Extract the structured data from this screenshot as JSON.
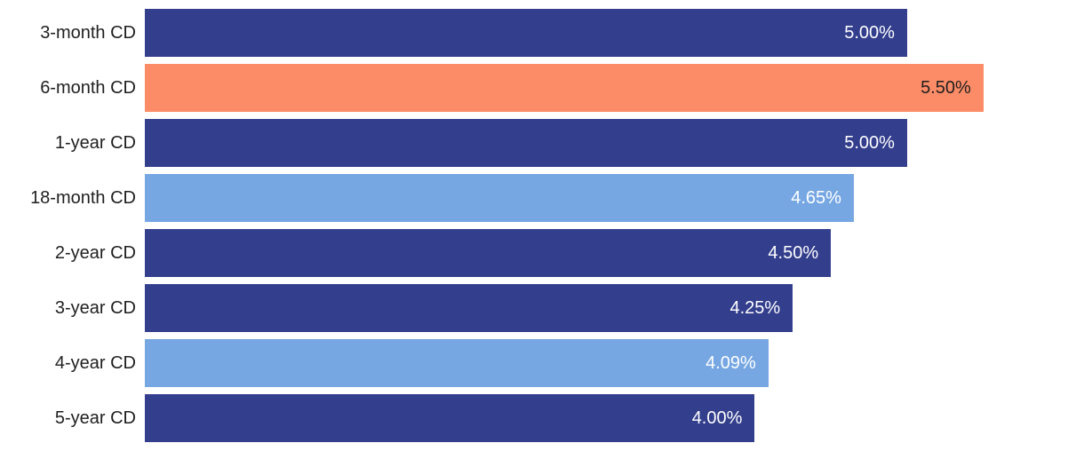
{
  "chart_data": {
    "type": "bar",
    "orientation": "horizontal",
    "title": "",
    "xlabel": "",
    "ylabel": "",
    "categories": [
      "3-month CD",
      "6-month CD",
      "1-year CD",
      "18-month CD",
      "2-year CD",
      "3-year CD",
      "4-year CD",
      "5-year CD"
    ],
    "values": [
      5.0,
      5.5,
      5.0,
      4.65,
      4.5,
      4.25,
      4.09,
      4.0
    ],
    "value_labels": [
      "5.00%",
      "5.50%",
      "5.00%",
      "4.65%",
      "4.50%",
      "4.25%",
      "4.09%",
      "4.00%"
    ],
    "bar_colors": [
      "#333e8d",
      "#fc8c67",
      "#333e8d",
      "#76a7e2",
      "#333e8d",
      "#333e8d",
      "#76a7e2",
      "#333e8d"
    ],
    "value_label_colors": [
      "#ffffff",
      "#1f1f1f",
      "#ffffff",
      "#ffffff",
      "#ffffff",
      "#ffffff",
      "#ffffff",
      "#ffffff"
    ],
    "xlim": [
      0,
      6.16
    ],
    "grid": false,
    "legend": false,
    "axes_visible": false
  },
  "colors": {
    "background": "#ffffff",
    "dark_blue": "#333e8d",
    "orange": "#fc8c67",
    "light_blue": "#76a7e2",
    "category_text": "#1f1f1f"
  }
}
